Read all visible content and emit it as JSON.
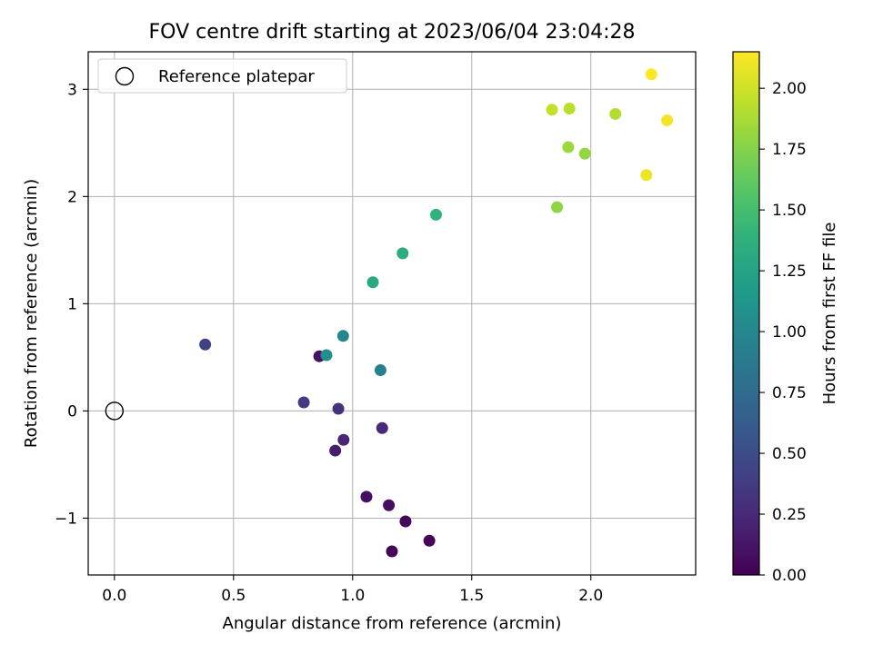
{
  "chart_data": {
    "type": "scatter",
    "title": "FOV centre drift starting at 2023/06/04 23:04:28",
    "xlabel": "Angular distance from reference (arcmin)",
    "ylabel": "Rotation from reference (arcmin)",
    "xlim": [
      -0.11,
      2.44
    ],
    "ylim": [
      -1.53,
      3.35
    ],
    "x_ticks": [
      0.0,
      0.5,
      1.0,
      1.5,
      2.0
    ],
    "x_tick_labels": [
      "0.0",
      "0.5",
      "1.0",
      "1.5",
      "2.0"
    ],
    "y_ticks": [
      -1,
      0,
      1,
      2,
      3
    ],
    "y_tick_labels": [
      "−1",
      "0",
      "1",
      "2",
      "3"
    ],
    "grid": true,
    "legend": {
      "placement": "upper-left",
      "entries": [
        "Reference platepar"
      ]
    },
    "reference_point": {
      "x": 0.0,
      "y": 0.0,
      "marker": "open-circle"
    },
    "colorbar": {
      "label": "Hours from first FF file",
      "colormap": "viridis",
      "range": [
        0.0,
        2.15
      ],
      "ticks": [
        0.0,
        0.25,
        0.5,
        0.75,
        1.0,
        1.25,
        1.5,
        1.75,
        2.0
      ],
      "tick_labels": [
        "0.00",
        "0.25",
        "0.50",
        "0.75",
        "1.00",
        "1.25",
        "1.50",
        "1.75",
        "2.00"
      ]
    },
    "points": [
      {
        "x": 1.165,
        "y": -1.31,
        "hours": 0.02
      },
      {
        "x": 1.322,
        "y": -1.21,
        "hours": 0.03
      },
      {
        "x": 1.222,
        "y": -1.03,
        "hours": 0.05
      },
      {
        "x": 1.152,
        "y": -0.88,
        "hours": 0.07
      },
      {
        "x": 1.058,
        "y": -0.8,
        "hours": 0.08
      },
      {
        "x": 0.86,
        "y": 0.51,
        "hours": 0.1
      },
      {
        "x": 0.927,
        "y": -0.37,
        "hours": 0.18
      },
      {
        "x": 0.962,
        "y": -0.27,
        "hours": 0.22
      },
      {
        "x": 1.124,
        "y": -0.16,
        "hours": 0.25
      },
      {
        "x": 0.94,
        "y": 0.02,
        "hours": 0.3
      },
      {
        "x": 0.795,
        "y": 0.08,
        "hours": 0.38
      },
      {
        "x": 0.381,
        "y": 0.62,
        "hours": 0.42
      },
      {
        "x": 1.117,
        "y": 0.38,
        "hours": 0.95
      },
      {
        "x": 0.96,
        "y": 0.7,
        "hours": 1.0
      },
      {
        "x": 0.89,
        "y": 0.52,
        "hours": 1.07
      },
      {
        "x": 1.085,
        "y": 1.2,
        "hours": 1.3
      },
      {
        "x": 1.21,
        "y": 1.47,
        "hours": 1.33
      },
      {
        "x": 1.35,
        "y": 1.83,
        "hours": 1.38
      },
      {
        "x": 1.858,
        "y": 1.9,
        "hours": 1.78
      },
      {
        "x": 1.975,
        "y": 2.4,
        "hours": 1.8
      },
      {
        "x": 1.905,
        "y": 2.46,
        "hours": 1.83
      },
      {
        "x": 2.103,
        "y": 2.77,
        "hours": 1.9
      },
      {
        "x": 1.91,
        "y": 2.82,
        "hours": 1.93
      },
      {
        "x": 1.837,
        "y": 2.81,
        "hours": 1.96
      },
      {
        "x": 2.233,
        "y": 2.2,
        "hours": 2.1
      },
      {
        "x": 2.32,
        "y": 2.71,
        "hours": 2.12
      },
      {
        "x": 2.254,
        "y": 3.14,
        "hours": 2.15
      }
    ]
  }
}
